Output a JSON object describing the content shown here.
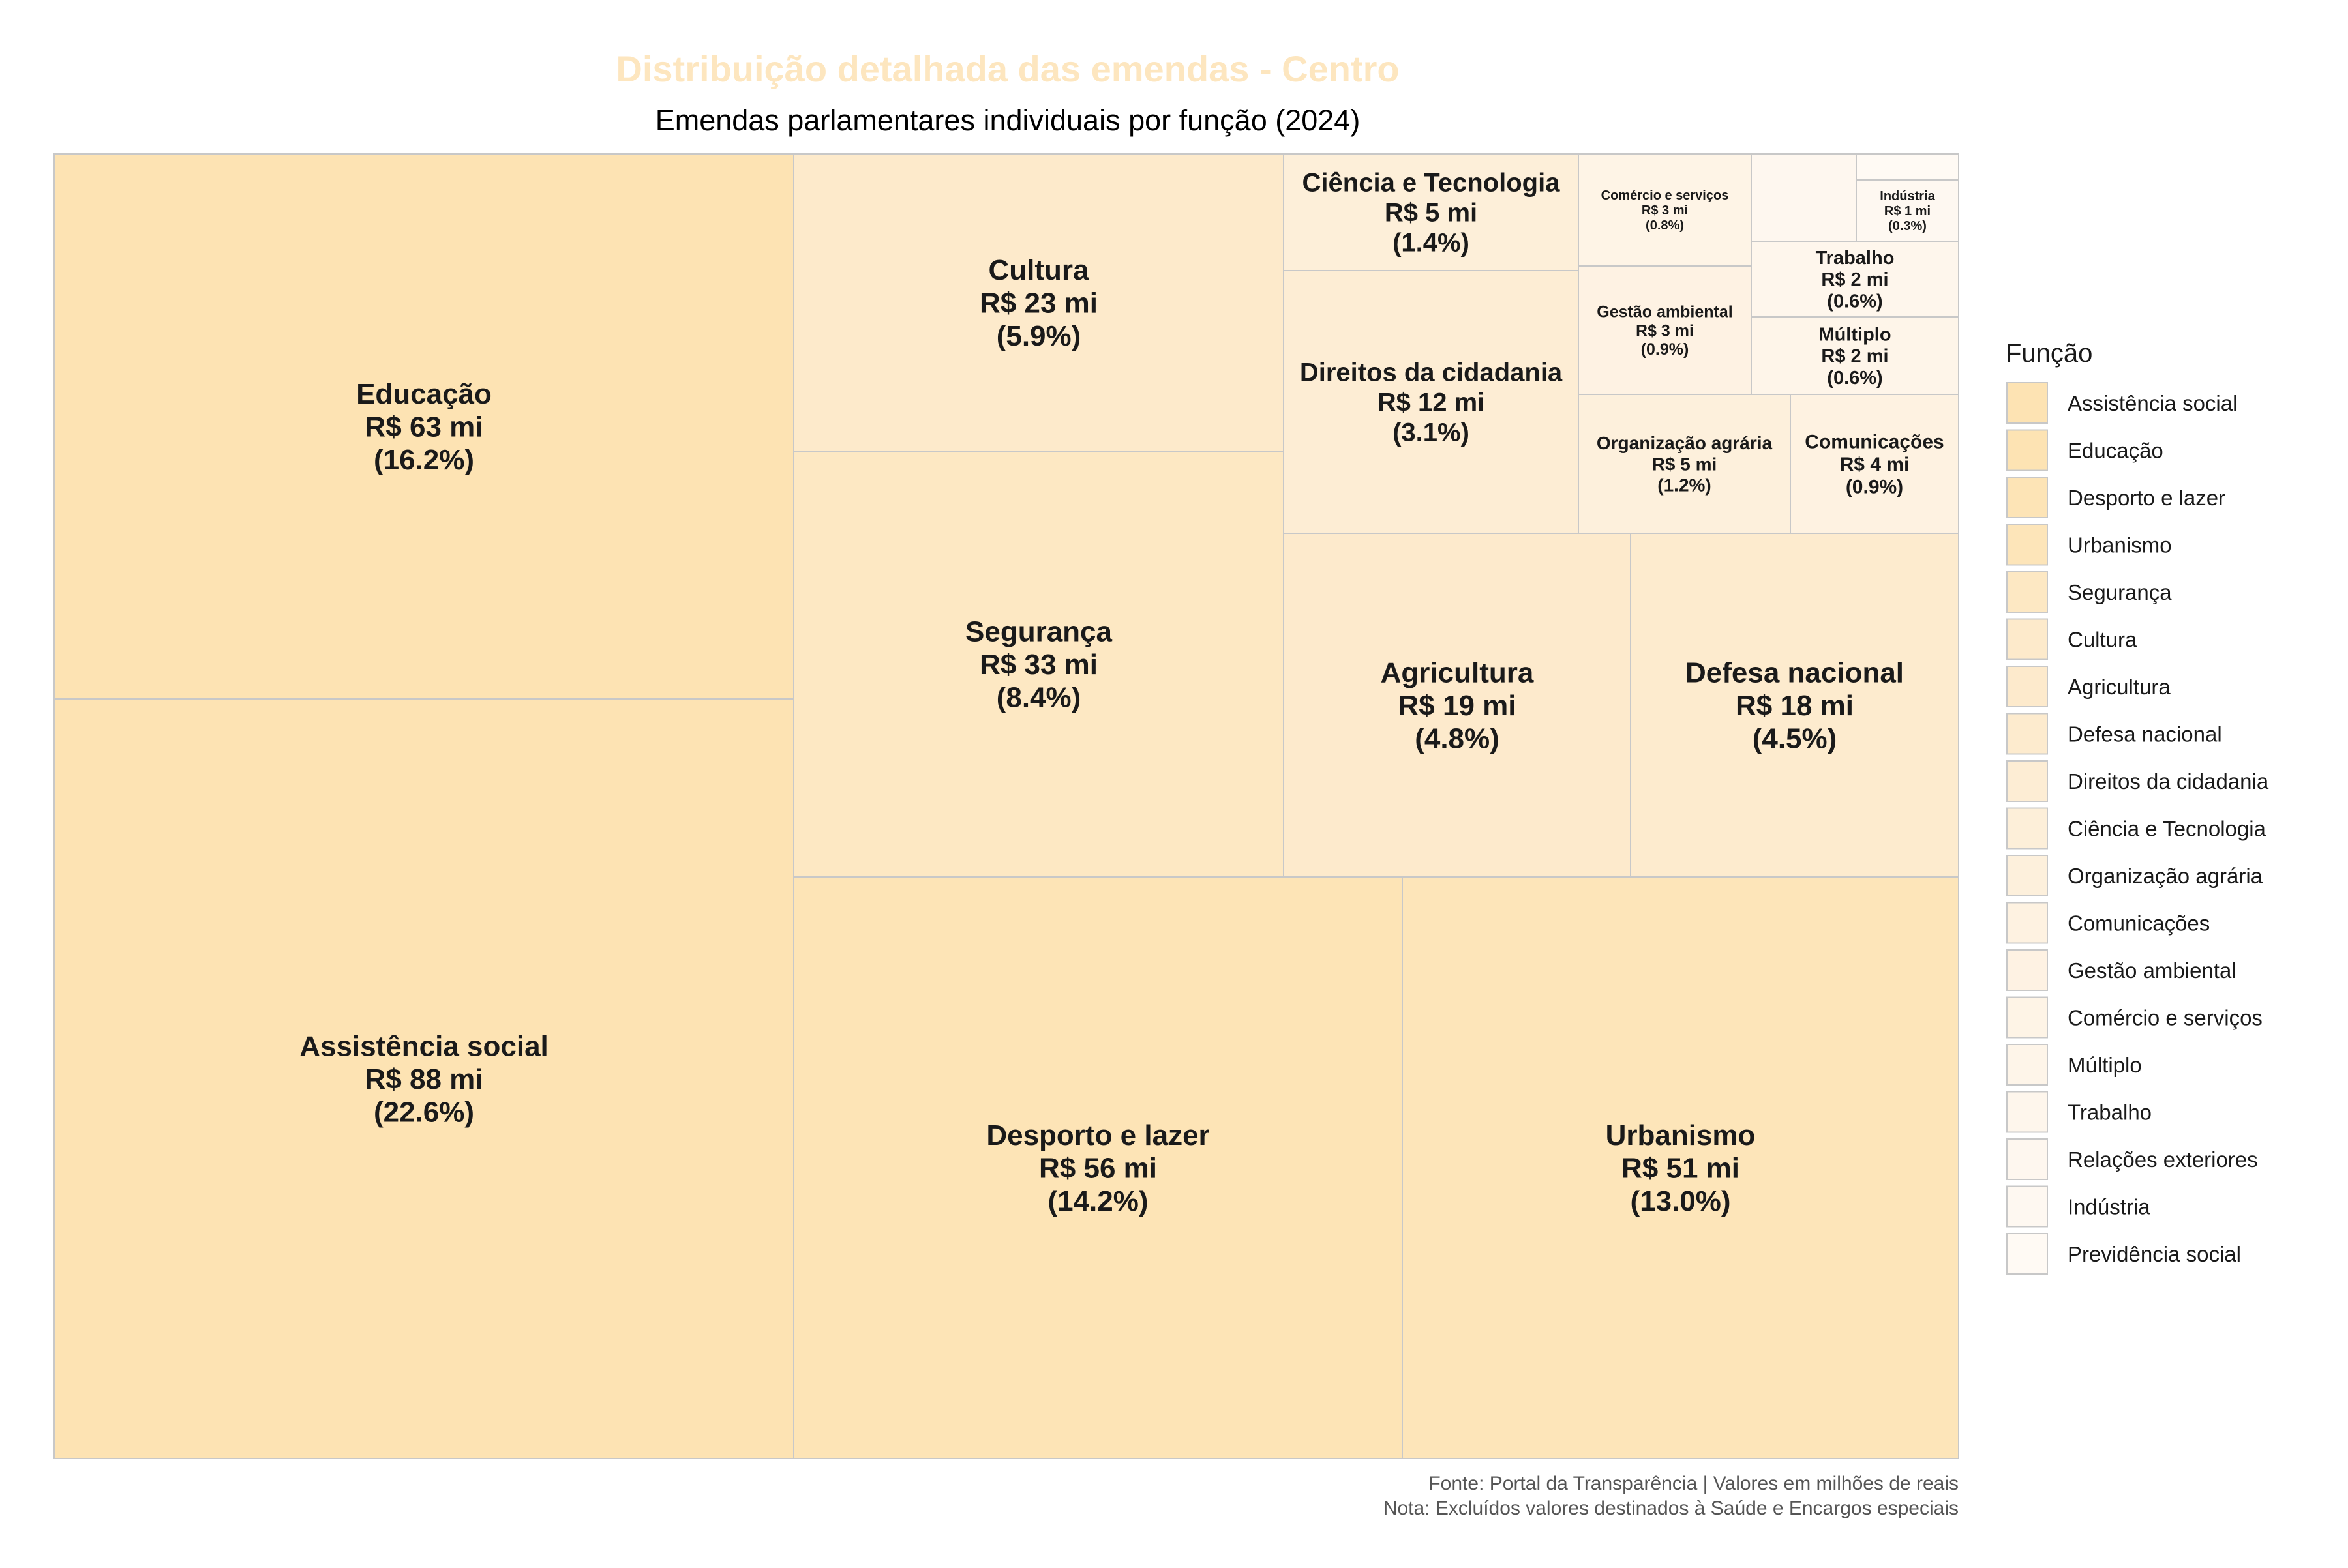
{
  "chart_data": {
    "type": "treemap",
    "title": "Distribuição detalhada das emendas - Centro",
    "subtitle": "Emendas parlamentares individuais por função (2024)",
    "legend_title": "Função",
    "legend_position": "right",
    "caption_line1": "Fonte: Portal da Transparência | Valores em milhões de reais",
    "caption_line2": "Nota: Excluídos valores destinados à Saúde e Encargos especiais",
    "colors": {
      "title": "#fde6bf",
      "border": "#c8c8c8",
      "label": "#1a1a1a",
      "caption": "#555555"
    },
    "items": [
      {
        "name": "Assistência social",
        "value": 88,
        "value_label": "R$ 88 mi",
        "pct_label": "(22.6%)",
        "color": "#fde3b3"
      },
      {
        "name": "Educação",
        "value": 63,
        "value_label": "R$ 63 mi",
        "pct_label": "(16.2%)",
        "color": "#fde3b3"
      },
      {
        "name": "Desporto e lazer",
        "value": 56,
        "value_label": "R$ 56 mi",
        "pct_label": "(14.2%)",
        "color": "#fde4b6"
      },
      {
        "name": "Urbanismo",
        "value": 51,
        "value_label": "R$ 51 mi",
        "pct_label": "(13.0%)",
        "color": "#fde5b9"
      },
      {
        "name": "Segurança",
        "value": 33,
        "value_label": "R$ 33 mi",
        "pct_label": "(8.4%)",
        "color": "#fde8c3"
      },
      {
        "name": "Cultura",
        "value": 23,
        "value_label": "R$ 23 mi",
        "pct_label": "(5.9%)",
        "color": "#fdeacb"
      },
      {
        "name": "Agricultura",
        "value": 19,
        "value_label": "R$ 19 mi",
        "pct_label": "(4.8%)",
        "color": "#fdeacc"
      },
      {
        "name": "Defesa nacional",
        "value": 18,
        "value_label": "R$ 18 mi",
        "pct_label": "(4.5%)",
        "color": "#fdebce"
      },
      {
        "name": "Direitos da cidadania",
        "value": 12,
        "value_label": "R$ 12 mi",
        "pct_label": "(3.1%)",
        "color": "#fdedd4"
      },
      {
        "name": "Ciência e Tecnologia",
        "value": 5,
        "value_label": "R$ 5 mi",
        "pct_label": "(1.4%)",
        "color": "#fdefd9"
      },
      {
        "name": "Organização agrária",
        "value": 5,
        "value_label": "R$ 5 mi",
        "pct_label": "(1.2%)",
        "color": "#fdf0dc"
      },
      {
        "name": "Comunicações",
        "value": 4,
        "value_label": "R$ 4 mi",
        "pct_label": "(0.9%)",
        "color": "#fef2e1"
      },
      {
        "name": "Gestão ambiental",
        "value": 3,
        "value_label": "R$ 3 mi",
        "pct_label": "(0.9%)",
        "color": "#fef2e3"
      },
      {
        "name": "Comércio e serviços",
        "value": 3,
        "value_label": "R$ 3 mi",
        "pct_label": "(0.8%)",
        "color": "#fef4e6"
      },
      {
        "name": "Múltiplo",
        "value": 2,
        "value_label": "R$ 2 mi",
        "pct_label": "(0.6%)",
        "color": "#fef5e9"
      },
      {
        "name": "Trabalho",
        "value": 2,
        "value_label": "R$ 2 mi",
        "pct_label": "(0.6%)",
        "color": "#fef6ec"
      },
      {
        "name": "Relações exteriores",
        "value": null,
        "value_label": "",
        "pct_label": "",
        "color": "#fef7ef"
      },
      {
        "name": "Indústria",
        "value": 1,
        "value_label": "R$ 1 mi",
        "pct_label": "(0.3%)",
        "color": "#fef8f1"
      },
      {
        "name": "Previdência social",
        "value": null,
        "value_label": "",
        "pct_label": "",
        "color": "#fffaf4"
      }
    ]
  }
}
